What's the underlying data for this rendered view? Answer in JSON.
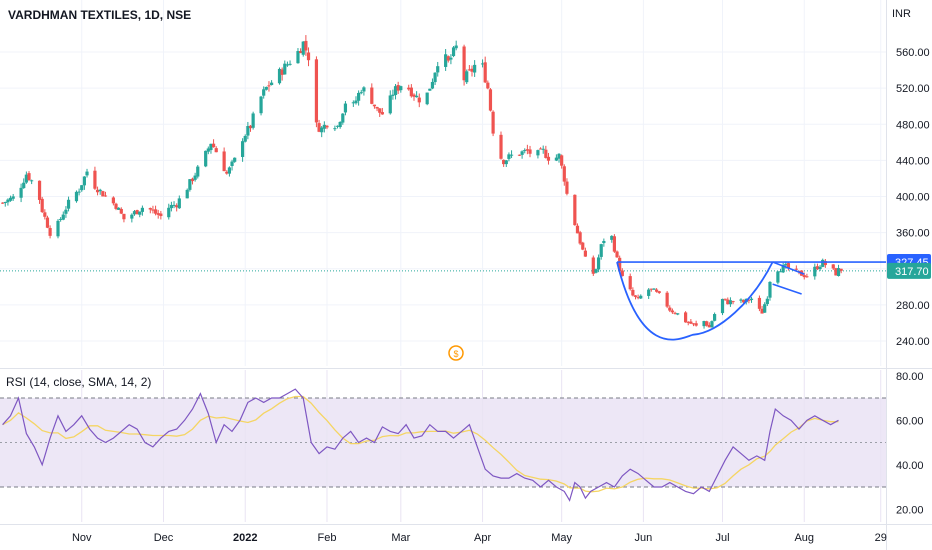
{
  "chart_data": [
    {
      "type": "candlestick",
      "title": "VARDHMAN TEXTILES, 1D, NSE",
      "currency": "INR",
      "ylim": [
        220,
        575
      ],
      "y_ticks": [
        "560.00",
        "520.00",
        "480.00",
        "440.00",
        "400.00",
        "360.00",
        "320.00",
        "280.00",
        "240.00"
      ],
      "y_tick_values": [
        560,
        520,
        480,
        440,
        400,
        360,
        320,
        280,
        240
      ],
      "x_ticks": [
        "Nov",
        "Dec",
        "2022",
        "Feb",
        "Mar",
        "Apr",
        "May",
        "Jun",
        "Jul",
        "Aug",
        "29"
      ],
      "x_tick_days": [
        30,
        61,
        92,
        123,
        151,
        182,
        212,
        243,
        273,
        304,
        333
      ],
      "last_price": "317.70",
      "resistance_price": "327.45",
      "resistance_value": 327.45,
      "last_value": 317.7,
      "up_color": "#26a69a",
      "down_color": "#ef5350",
      "pattern_color": "#2962ff",
      "close_path": [
        [
          0,
          393
        ],
        [
          5,
          400
        ],
        [
          9,
          425
        ],
        [
          13,
          410
        ],
        [
          15,
          385
        ],
        [
          18,
          360
        ],
        [
          20,
          363
        ],
        [
          23,
          382
        ],
        [
          26,
          398
        ],
        [
          29,
          408
        ],
        [
          32,
          428
        ],
        [
          35,
          412
        ],
        [
          39,
          400
        ],
        [
          43,
          390
        ],
        [
          46,
          375
        ],
        [
          50,
          382
        ],
        [
          54,
          390
        ],
        [
          57,
          383
        ],
        [
          60,
          378
        ],
        [
          63,
          388
        ],
        [
          66,
          392
        ],
        [
          70,
          410
        ],
        [
          73,
          425
        ],
        [
          76,
          440
        ],
        [
          79,
          460
        ],
        [
          82,
          445
        ],
        [
          85,
          425
        ],
        [
          88,
          440
        ],
        [
          91,
          465
        ],
        [
          94,
          478
        ],
        [
          97,
          505
        ],
        [
          100,
          520
        ],
        [
          103,
          530
        ],
        [
          106,
          540
        ],
        [
          109,
          550
        ],
        [
          112,
          560
        ],
        [
          114,
          570
        ],
        [
          116,
          555
        ],
        [
          118,
          480
        ],
        [
          121,
          475
        ],
        [
          124,
          485
        ],
        [
          127,
          478
        ],
        [
          130,
          505
        ],
        [
          133,
          500
        ],
        [
          136,
          520
        ],
        [
          139,
          513
        ],
        [
          142,
          495
        ],
        [
          145,
          490
        ],
        [
          148,
          515
        ],
        [
          151,
          524
        ],
        [
          154,
          520
        ],
        [
          157,
          510
        ],
        [
          160,
          505
        ],
        [
          163,
          530
        ],
        [
          166,
          560
        ],
        [
          169,
          548
        ],
        [
          172,
          565
        ],
        [
          175,
          530
        ],
        [
          178,
          540
        ],
        [
          181,
          555
        ],
        [
          184,
          520
        ],
        [
          187,
          450
        ],
        [
          190,
          440
        ],
        [
          193,
          445
        ],
        [
          196,
          448
        ],
        [
          199,
          450
        ],
        [
          202,
          445
        ],
        [
          205,
          450
        ],
        [
          208,
          440
        ],
        [
          211,
          445
        ],
        [
          213,
          420
        ],
        [
          215,
          385
        ],
        [
          217,
          370
        ],
        [
          219,
          350
        ],
        [
          221,
          330
        ],
        [
          223,
          310
        ],
        [
          225,
          320
        ],
        [
          227,
          345
        ],
        [
          229,
          360
        ],
        [
          231,
          355
        ],
        [
          233,
          330
        ],
        [
          235,
          310
        ],
        [
          237,
          300
        ],
        [
          239,
          290
        ],
        [
          241,
          285
        ],
        [
          244,
          298
        ],
        [
          247,
          295
        ],
        [
          250,
          288
        ],
        [
          253,
          275
        ],
        [
          256,
          270
        ],
        [
          259,
          262
        ],
        [
          262,
          258
        ],
        [
          264,
          254
        ],
        [
          266,
          262
        ],
        [
          268,
          255
        ],
        [
          270,
          270
        ],
        [
          272,
          287
        ],
        [
          275,
          283
        ],
        [
          278,
          285
        ],
        [
          281,
          283
        ],
        [
          284,
          287
        ],
        [
          286,
          275
        ],
        [
          288,
          272
        ],
        [
          290,
          290
        ],
        [
          292,
          325
        ],
        [
          294,
          320
        ],
        [
          297,
          322
        ],
        [
          300,
          316
        ],
        [
          302,
          315
        ],
        [
          305,
          312
        ],
        [
          308,
          320
        ],
        [
          311,
          327
        ],
        [
          314,
          320
        ],
        [
          316,
          315
        ],
        [
          318,
          322
        ]
      ]
    },
    {
      "type": "line",
      "title": "RSI (14, close, SMA, 14, 2)",
      "ylim": [
        16,
        82
      ],
      "y_ticks": [
        "80.00",
        "60.00",
        "40.00",
        "20.00"
      ],
      "y_tick_values": [
        80,
        60,
        40,
        20
      ],
      "band_upper": 70,
      "band_mid": 50,
      "band_lower": 30,
      "line_color": "#7e57c2",
      "sma_color": "#f5d563",
      "band_fill": "#ede7f6",
      "rsi_values": [
        [
          0,
          58
        ],
        [
          3,
          62
        ],
        [
          6,
          70
        ],
        [
          9,
          54
        ],
        [
          12,
          48
        ],
        [
          15,
          40
        ],
        [
          18,
          52
        ],
        [
          21,
          62
        ],
        [
          24,
          55
        ],
        [
          27,
          58
        ],
        [
          30,
          62
        ],
        [
          33,
          56
        ],
        [
          36,
          52
        ],
        [
          39,
          50
        ],
        [
          42,
          52
        ],
        [
          45,
          55
        ],
        [
          48,
          58
        ],
        [
          51,
          56
        ],
        [
          54,
          50
        ],
        [
          57,
          48
        ],
        [
          60,
          52
        ],
        [
          63,
          55
        ],
        [
          66,
          56
        ],
        [
          69,
          60
        ],
        [
          72,
          65
        ],
        [
          75,
          72
        ],
        [
          78,
          63
        ],
        [
          81,
          50
        ],
        [
          84,
          58
        ],
        [
          87,
          55
        ],
        [
          90,
          60
        ],
        [
          93,
          68
        ],
        [
          96,
          70
        ],
        [
          99,
          68
        ],
        [
          102,
          70
        ],
        [
          105,
          70
        ],
        [
          108,
          72
        ],
        [
          111,
          74
        ],
        [
          114,
          70
        ],
        [
          117,
          50
        ],
        [
          120,
          45
        ],
        [
          123,
          48
        ],
        [
          126,
          47
        ],
        [
          129,
          52
        ],
        [
          132,
          55
        ],
        [
          135,
          50
        ],
        [
          138,
          52
        ],
        [
          141,
          50
        ],
        [
          144,
          57
        ],
        [
          147,
          55
        ],
        [
          150,
          54
        ],
        [
          153,
          58
        ],
        [
          156,
          52
        ],
        [
          159,
          53
        ],
        [
          162,
          58
        ],
        [
          165,
          55
        ],
        [
          168,
          55
        ],
        [
          171,
          52
        ],
        [
          174,
          55
        ],
        [
          177,
          58
        ],
        [
          180,
          48
        ],
        [
          183,
          38
        ],
        [
          186,
          35
        ],
        [
          189,
          34
        ],
        [
          192,
          34
        ],
        [
          195,
          36
        ],
        [
          198,
          34
        ],
        [
          201,
          33
        ],
        [
          204,
          30
        ],
        [
          207,
          33
        ],
        [
          210,
          30
        ],
        [
          213,
          28
        ],
        [
          215,
          24
        ],
        [
          217,
          32
        ],
        [
          219,
          30
        ],
        [
          221,
          25
        ],
        [
          223,
          28
        ],
        [
          226,
          30
        ],
        [
          229,
          32
        ],
        [
          232,
          30
        ],
        [
          235,
          35
        ],
        [
          238,
          38
        ],
        [
          241,
          36
        ],
        [
          244,
          33
        ],
        [
          247,
          30
        ],
        [
          250,
          30
        ],
        [
          253,
          32
        ],
        [
          256,
          30
        ],
        [
          259,
          28
        ],
        [
          262,
          27
        ],
        [
          265,
          30
        ],
        [
          268,
          28
        ],
        [
          271,
          35
        ],
        [
          274,
          42
        ],
        [
          277,
          48
        ],
        [
          280,
          45
        ],
        [
          283,
          42
        ],
        [
          286,
          44
        ],
        [
          289,
          42
        ],
        [
          291,
          55
        ],
        [
          293,
          65
        ],
        [
          296,
          62
        ],
        [
          299,
          60
        ],
        [
          302,
          56
        ],
        [
          305,
          60
        ],
        [
          308,
          62
        ],
        [
          311,
          60
        ],
        [
          314,
          58
        ],
        [
          317,
          60
        ]
      ]
    }
  ]
}
